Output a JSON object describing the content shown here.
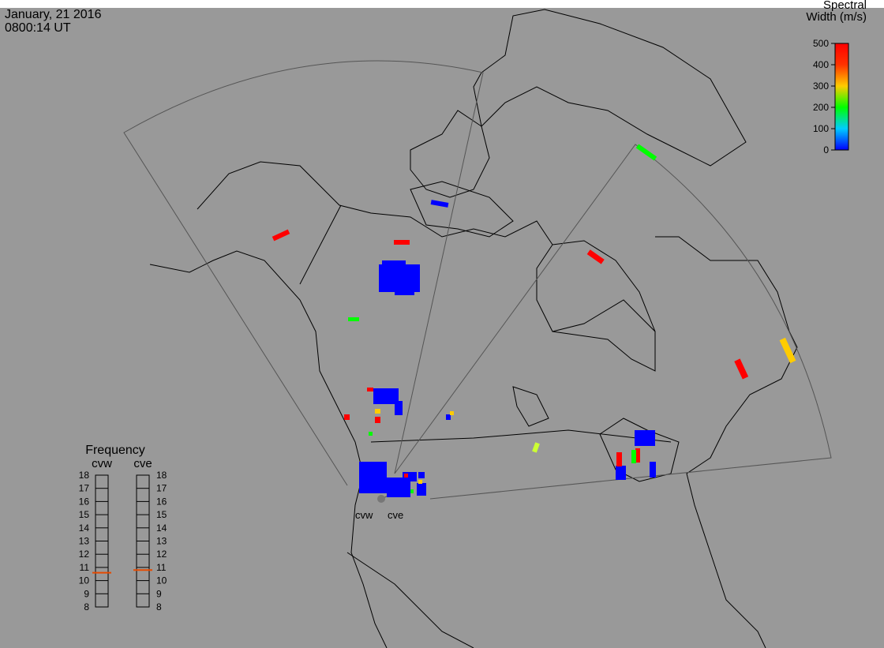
{
  "header": {
    "date": "January, 21 2016",
    "time": "0800:14 UT"
  },
  "colorbar": {
    "title_lines": [
      "Spectral",
      "Width (m/s)"
    ],
    "range": [
      0,
      500
    ],
    "ticks": [
      0,
      100,
      200,
      300,
      400,
      500
    ]
  },
  "frequency": {
    "title": "Frequency",
    "range": [
      8,
      18
    ],
    "ticks": [
      8,
      9,
      10,
      11,
      12,
      13,
      14,
      15,
      16,
      17,
      18
    ],
    "radars": [
      {
        "name": "cvw",
        "value": 10.6
      },
      {
        "name": "cve",
        "value": 10.8
      }
    ]
  },
  "radar_labels": [
    "cvw",
    "cve"
  ]
}
